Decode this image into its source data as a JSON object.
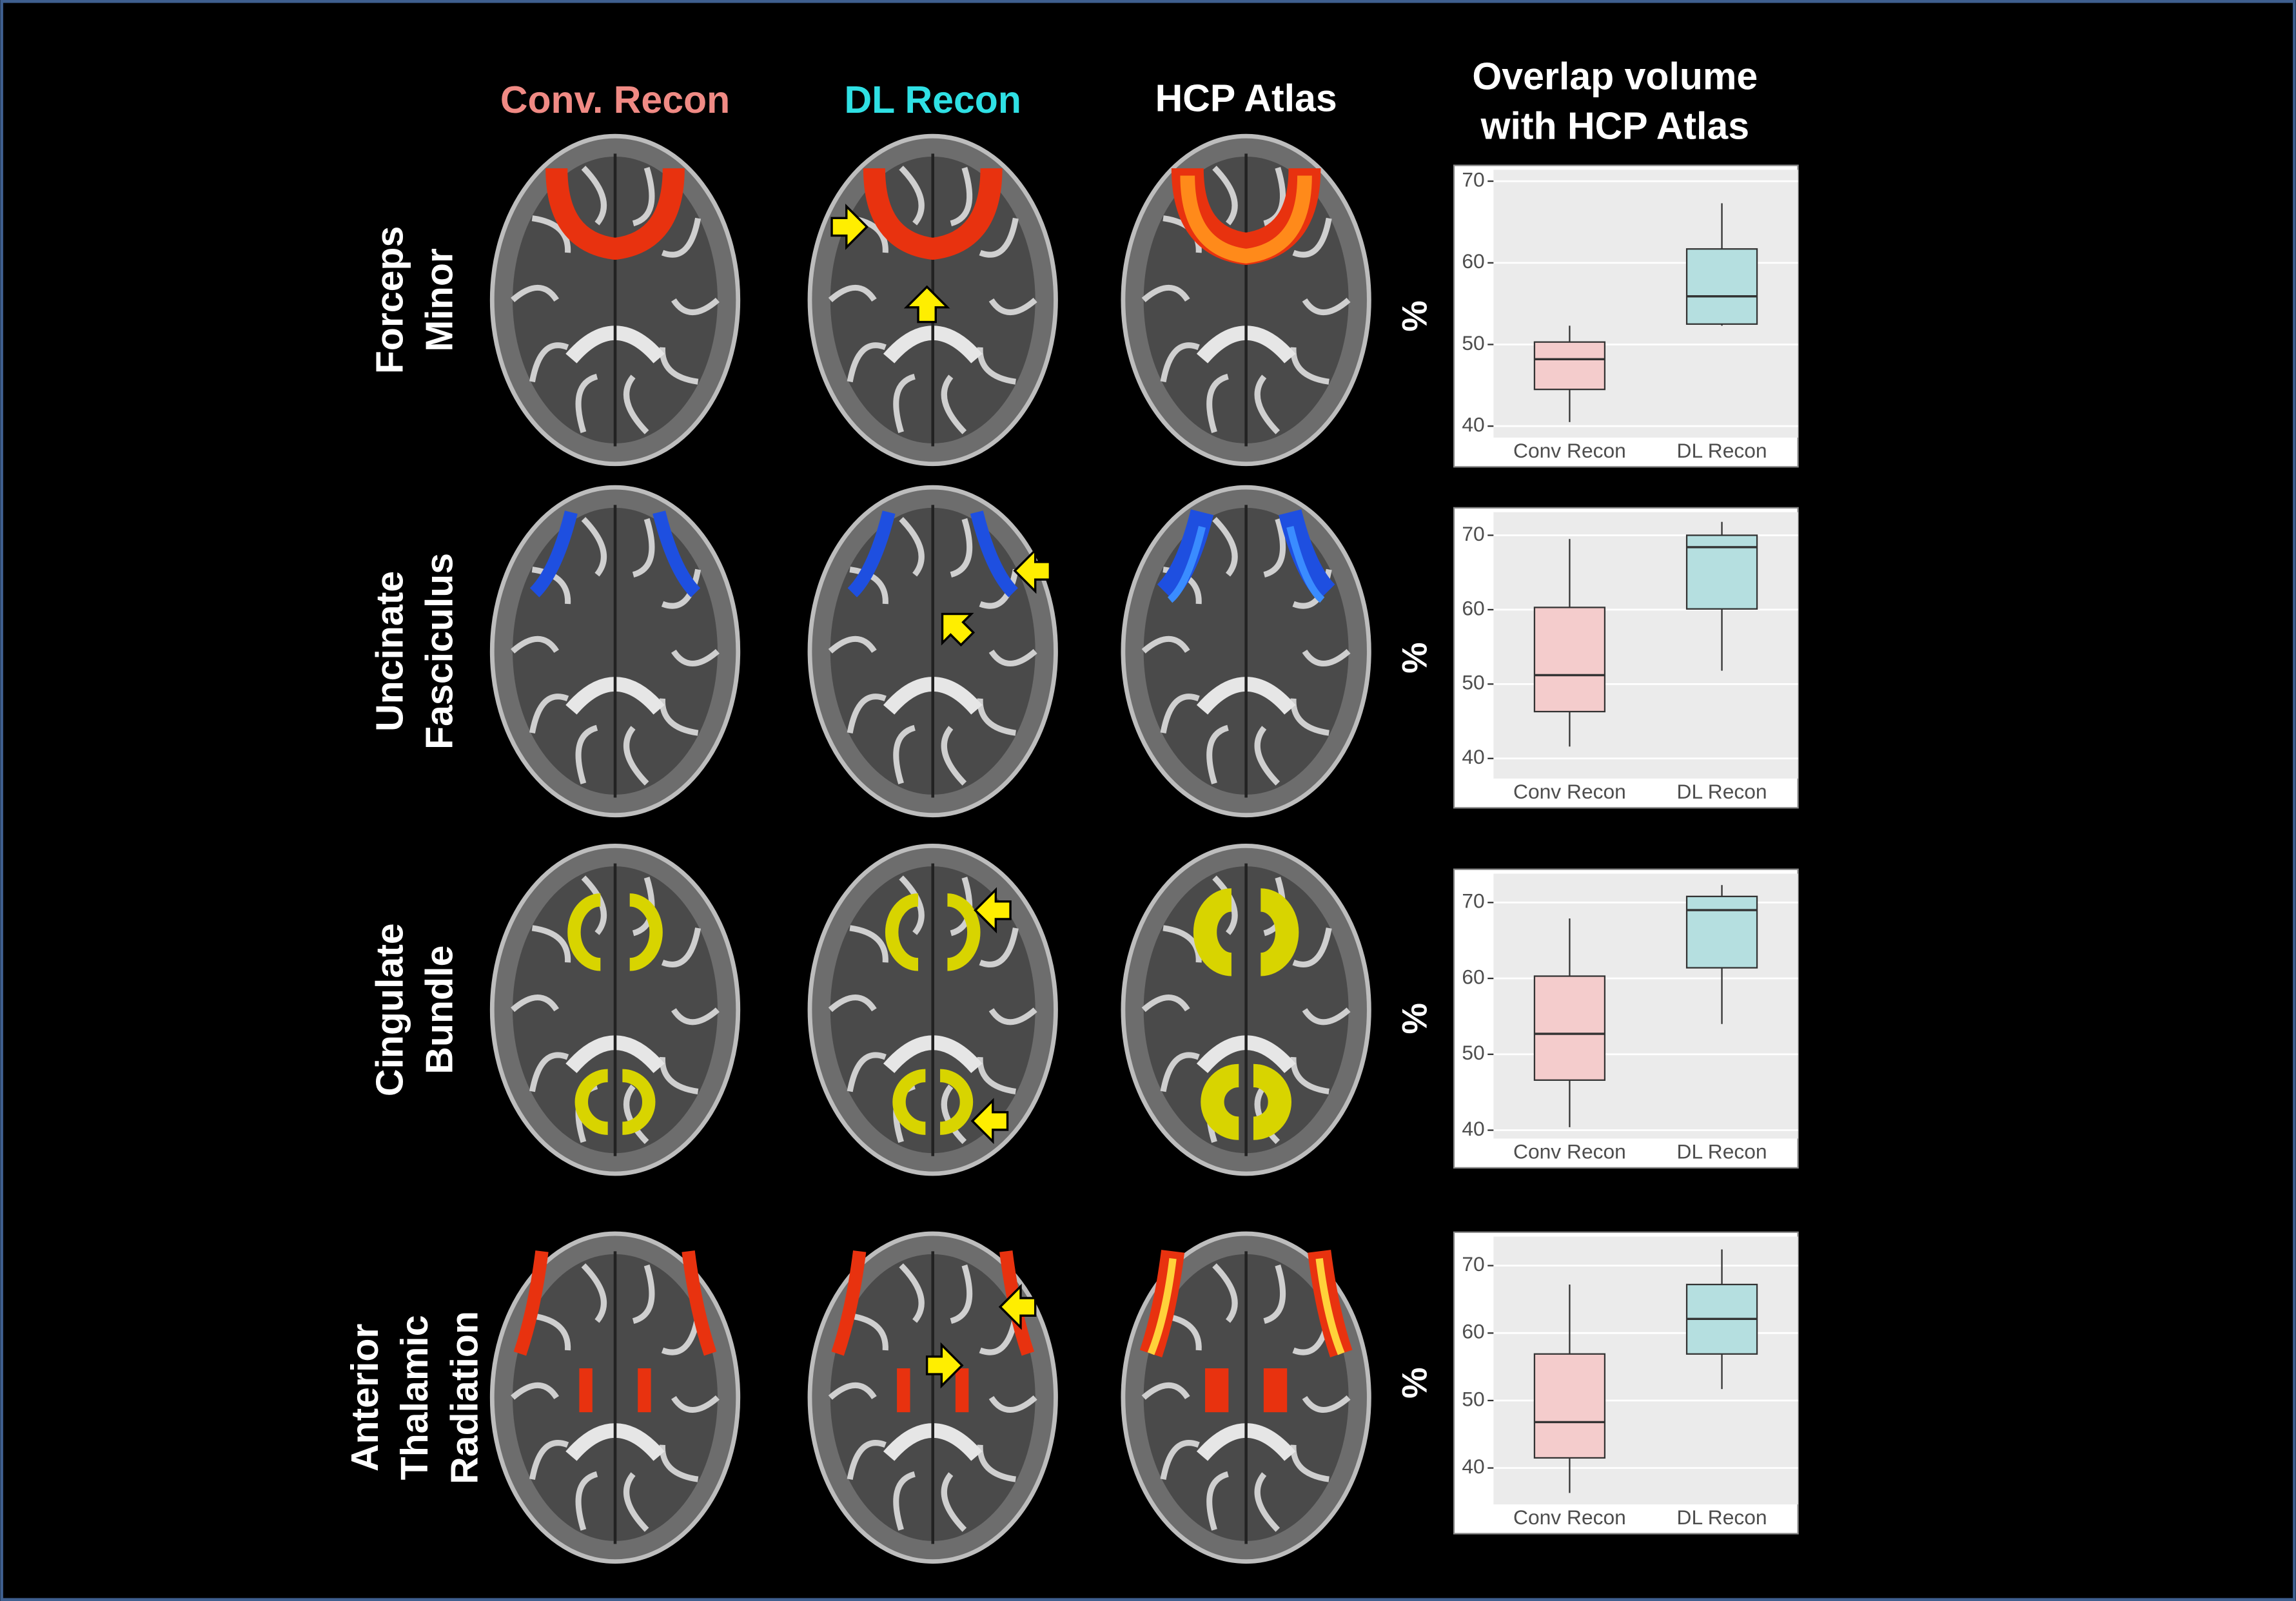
{
  "column_headers": [
    "Conv. Recon",
    "DL Recon",
    "HCP Atlas"
  ],
  "overlap_title": [
    "Overlap volume",
    "with HCP Atlas"
  ],
  "row_labels": [
    [
      "Forceps",
      "Minor"
    ],
    [
      "Uncinate",
      "Fasciculus"
    ],
    [
      "Cingulate",
      "Bundle"
    ],
    [
      "Anterior",
      "Thalamic",
      "Radiation"
    ]
  ],
  "chart_data": [
    {
      "type": "box",
      "ylabel": "%",
      "categories": [
        "Conv Recon",
        "DL Recon"
      ],
      "colors": [
        "#f4cccc",
        "#b5dfe0"
      ],
      "grid": true,
      "ylim": [
        38.6,
        71.4
      ],
      "yticks": [
        40,
        50,
        60,
        70
      ],
      "boxes": [
        {
          "min": 40.5,
          "q1": 44.5,
          "median": 48.2,
          "q3": 50.3,
          "max": 52.3
        },
        {
          "min": 52.3,
          "q1": 52.5,
          "median": 55.9,
          "q3": 61.7,
          "max": 67.3
        }
      ]
    },
    {
      "type": "box",
      "ylabel": "%",
      "categories": [
        "Conv Recon",
        "DL Recon"
      ],
      "colors": [
        "#f4cccc",
        "#b5dfe0"
      ],
      "grid": true,
      "ylim": [
        37.3,
        73.1
      ],
      "yticks": [
        40,
        50,
        60,
        70
      ],
      "boxes": [
        {
          "min": 41.6,
          "q1": 46.3,
          "median": 51.2,
          "q3": 60.3,
          "max": 69.5
        },
        {
          "min": 51.8,
          "q1": 60.1,
          "median": 68.4,
          "q3": 70.0,
          "max": 71.8
        }
      ]
    },
    {
      "type": "box",
      "ylabel": "%",
      "categories": [
        "Conv Recon",
        "DL Recon"
      ],
      "colors": [
        "#f4cccc",
        "#b5dfe0"
      ],
      "grid": true,
      "ylim": [
        38.9,
        73.8
      ],
      "yticks": [
        40,
        50,
        60,
        70
      ],
      "boxes": [
        {
          "min": 40.4,
          "q1": 46.6,
          "median": 52.7,
          "q3": 60.3,
          "max": 67.9
        },
        {
          "min": 54.0,
          "q1": 61.4,
          "median": 69.0,
          "q3": 70.8,
          "max": 72.3
        }
      ]
    },
    {
      "type": "box",
      "ylabel": "%",
      "categories": [
        "Conv Recon",
        "DL Recon"
      ],
      "colors": [
        "#f4cccc",
        "#b5dfe0"
      ],
      "grid": true,
      "ylim": [
        34.6,
        74.3
      ],
      "yticks": [
        40,
        50,
        60,
        70
      ],
      "boxes": [
        {
          "min": 36.3,
          "q1": 41.5,
          "median": 46.8,
          "q3": 56.9,
          "max": 67.2
        },
        {
          "min": 51.7,
          "q1": 56.9,
          "median": 62.1,
          "q3": 67.2,
          "max": 72.4
        }
      ]
    }
  ]
}
